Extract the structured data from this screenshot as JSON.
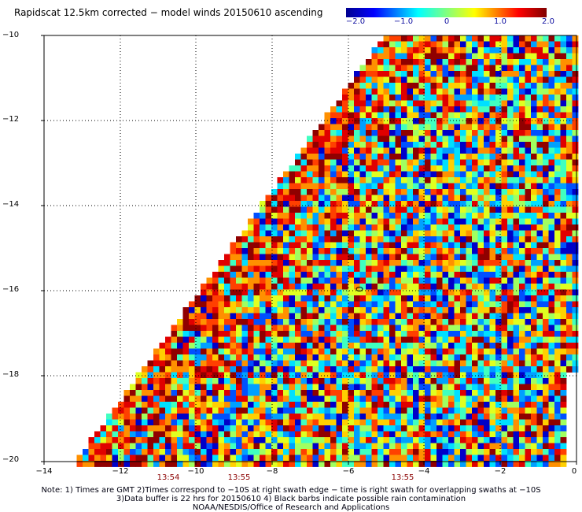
{
  "title": "Rapidscat 12.5km corrected − model winds 20150610 ascending",
  "colorbar": {
    "ticks": [
      "−2.0",
      "−1.0",
      "0",
      "1.0",
      "2.0"
    ],
    "range": [
      -2.0,
      2.0
    ]
  },
  "map": {
    "y_ticks": [
      "−10",
      "−12",
      "−14",
      "−16",
      "−18",
      "−20"
    ],
    "x_ticks": [
      "−14",
      "−12",
      "−10",
      "−8",
      "−6",
      "−4",
      "−2",
      "0"
    ],
    "lon_range": [
      -14,
      0
    ],
    "lat_range": [
      -20,
      -10
    ],
    "time_labels": [
      "13:54",
      "13:55",
      "13:55"
    ]
  },
  "notes": [
    "Note: 1) Times are GMT 2)Times correspond to −10S at right swath edge − time is right swath for overlapping swaths at −10S",
    "3)Data buffer is 22 hrs for 20150610 4) Black barbs indicate possible rain contamination",
    "NOAA/NESDIS/Office of Research and Applications"
  ]
}
